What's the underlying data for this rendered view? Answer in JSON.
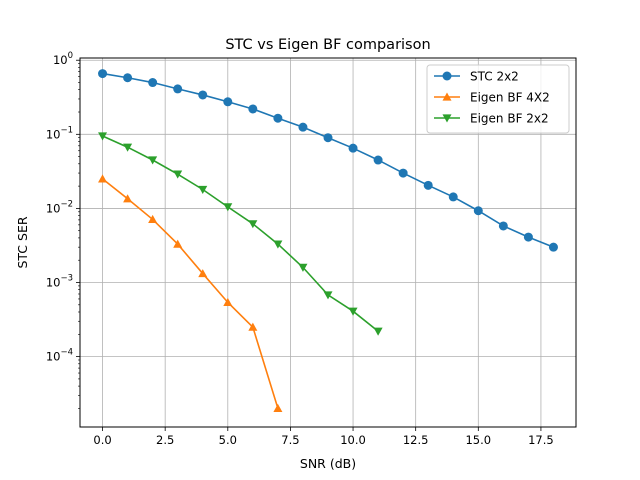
{
  "chart_data": {
    "type": "line",
    "title": "STC vs Eigen BF comparison",
    "xlabel": "SNR (dB)",
    "ylabel": "STC SER",
    "yscale": "log",
    "xlim": [
      -0.9,
      18.9
    ],
    "ylim_log10": [
      -4.95,
      0.03
    ],
    "x_ticks": [
      0.0,
      2.5,
      5.0,
      7.5,
      10.0,
      12.5,
      15.0,
      17.5
    ],
    "x_tick_labels": [
      "0.0",
      "2.5",
      "5.0",
      "7.5",
      "10.0",
      "12.5",
      "15.0",
      "17.5"
    ],
    "y_tick_exponents": [
      0,
      -1,
      -2,
      -3,
      -4
    ],
    "y_tick_base": "10",
    "grid": true,
    "legend_position": "top-right",
    "series": [
      {
        "name": "STC 2x2",
        "color": "#1f77b4",
        "marker": "circle",
        "x": [
          0,
          1,
          2,
          3,
          4,
          5,
          6,
          7,
          8,
          9,
          10,
          11,
          12,
          13,
          14,
          15,
          16,
          17,
          18
        ],
        "y": [
          0.66,
          0.58,
          0.5,
          0.41,
          0.34,
          0.275,
          0.22,
          0.165,
          0.125,
          0.09,
          0.065,
          0.045,
          0.03,
          0.0205,
          0.0143,
          0.0093,
          0.0058,
          0.0041,
          0.003
        ]
      },
      {
        "name": "Eigen BF 4X2",
        "color": "#ff7f0e",
        "marker": "triangle-up",
        "x": [
          0,
          1,
          2,
          3,
          4,
          5,
          6,
          7
        ],
        "y": [
          0.025,
          0.0135,
          0.0071,
          0.0033,
          0.00132,
          0.00054,
          0.00025,
          2e-05
        ]
      },
      {
        "name": "Eigen BF 2x2",
        "color": "#2ca02c",
        "marker": "triangle-down",
        "x": [
          0,
          1,
          2,
          3,
          4,
          5,
          6,
          7,
          8,
          9,
          10,
          11
        ],
        "y": [
          0.095,
          0.067,
          0.045,
          0.029,
          0.018,
          0.0105,
          0.0062,
          0.0033,
          0.0016,
          0.00068,
          0.00041,
          0.00022
        ]
      }
    ]
  }
}
